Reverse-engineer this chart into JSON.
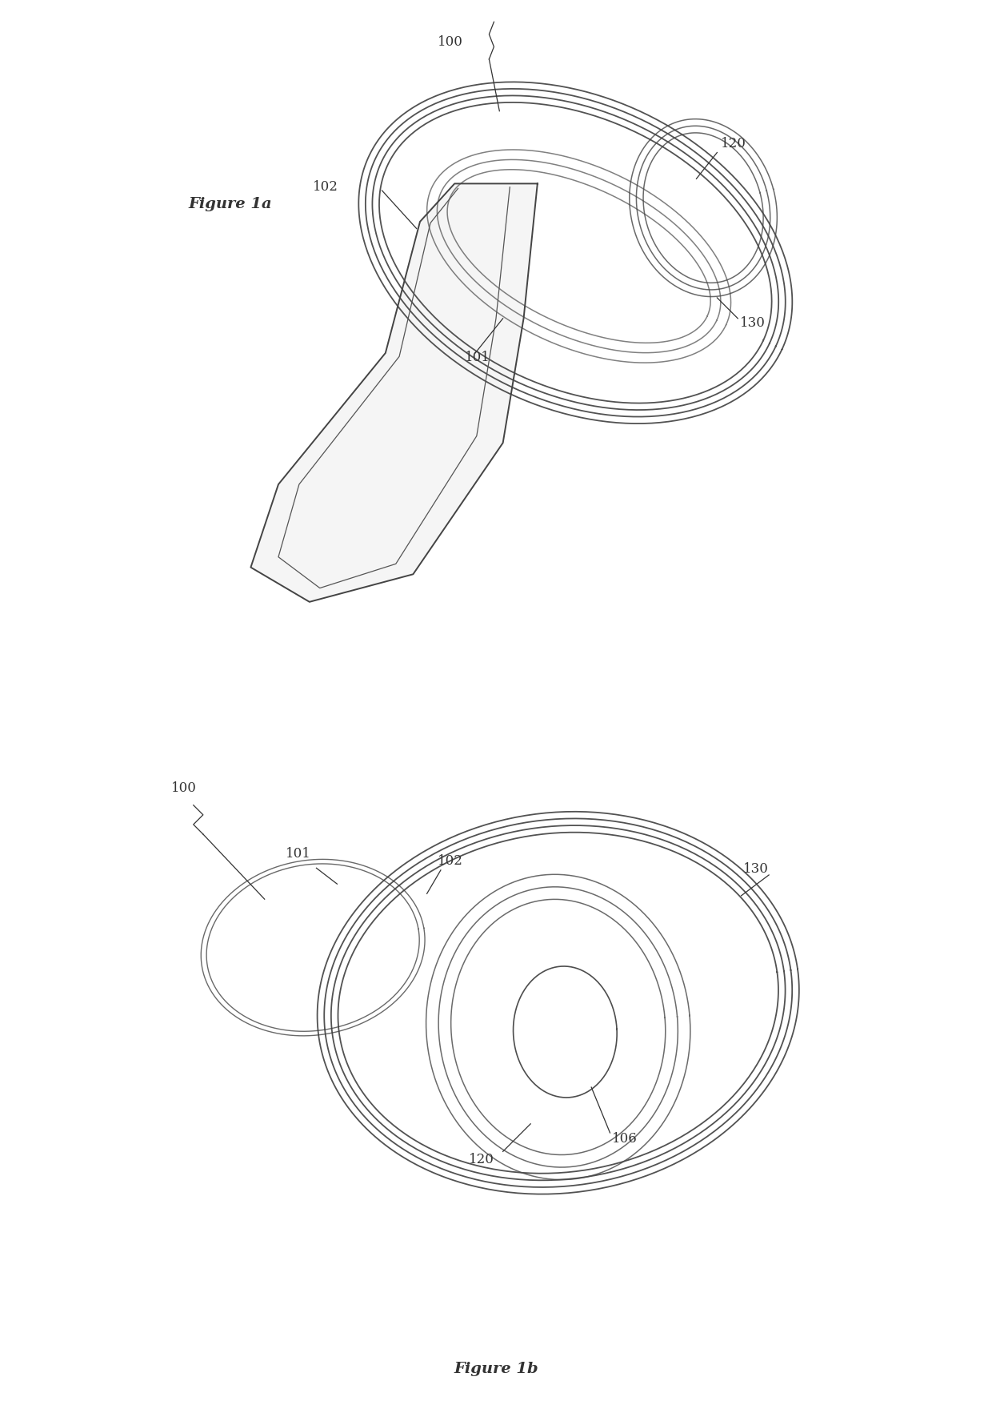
{
  "bg_color": "#ffffff",
  "line_color": "#333333",
  "fig1a_label": "Figure 1a",
  "fig1b_label": "Figure 1b"
}
